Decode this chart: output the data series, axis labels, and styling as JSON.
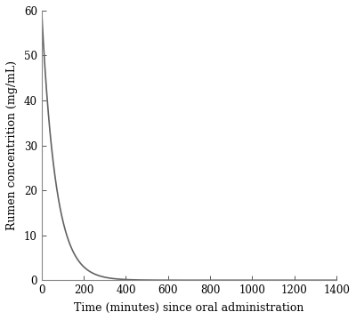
{
  "x_min": 0,
  "x_max": 1400,
  "y_min": 0,
  "y_max": 60,
  "x_ticks": [
    0,
    200,
    400,
    600,
    800,
    1000,
    1200,
    1400
  ],
  "y_ticks": [
    0,
    10,
    20,
    30,
    40,
    50,
    60
  ],
  "xlabel": "Time (minutes) since oral administration",
  "ylabel": "Rumen concentrition (mg/mL)",
  "line_color": "#636363",
  "line_width": 1.2,
  "background_color": "#ffffff",
  "C0": 60.0,
  "k": 0.015,
  "t_end": 1400,
  "tick_fontsize": 8.5,
  "label_fontsize": 9.0
}
